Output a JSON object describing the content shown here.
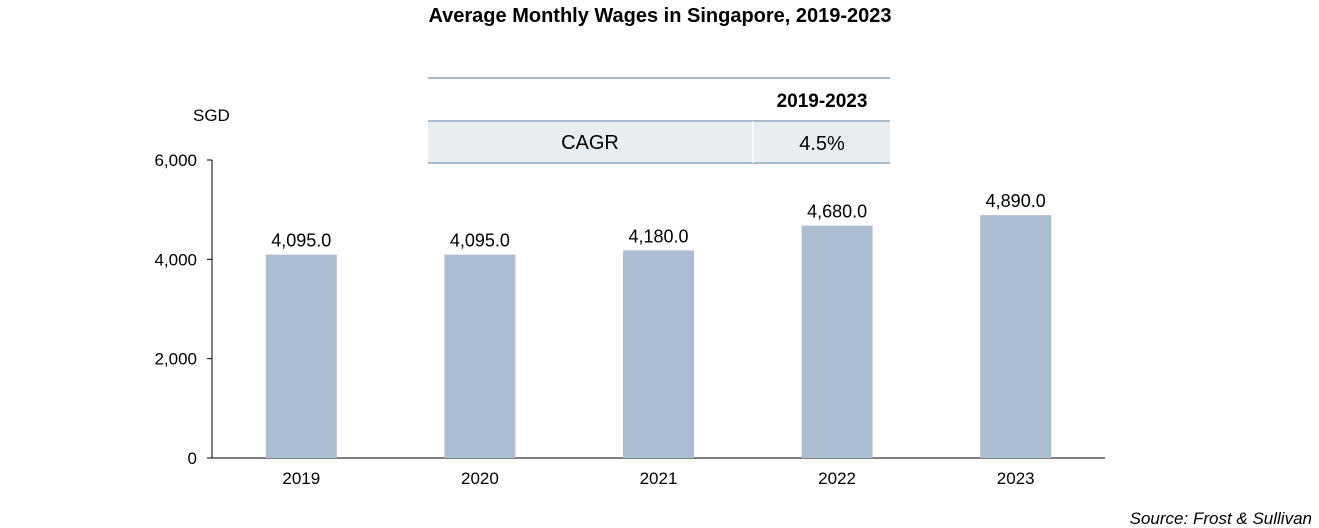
{
  "chart_data": {
    "type": "bar",
    "title": "Average Monthly Wages  in Singapore, 2019-2023",
    "ylabel": "SGD",
    "xlabel": "",
    "categories": [
      "2019",
      "2020",
      "2021",
      "2022",
      "2023"
    ],
    "values": [
      4095.0,
      4095.0,
      4180.0,
      4680.0,
      4890.0
    ],
    "value_labels": [
      "4,095.0",
      "4,095.0",
      "4,180.0",
      "4,680.0",
      "4,890.0"
    ],
    "ylim": [
      0,
      6000
    ],
    "yticks": [
      0,
      2000,
      4000,
      6000
    ],
    "ytick_labels": [
      "0",
      "2,000",
      "4,000",
      "6,000"
    ],
    "grid": false,
    "bar_color": "#adbdd1"
  },
  "cagr_table": {
    "period_header": "2019-2023",
    "row_label": "CAGR",
    "row_value": "4.5%",
    "shade_color": "#e8edf2",
    "line_color": "#a9bccd"
  },
  "source": "Source: Frost & Sullivan"
}
